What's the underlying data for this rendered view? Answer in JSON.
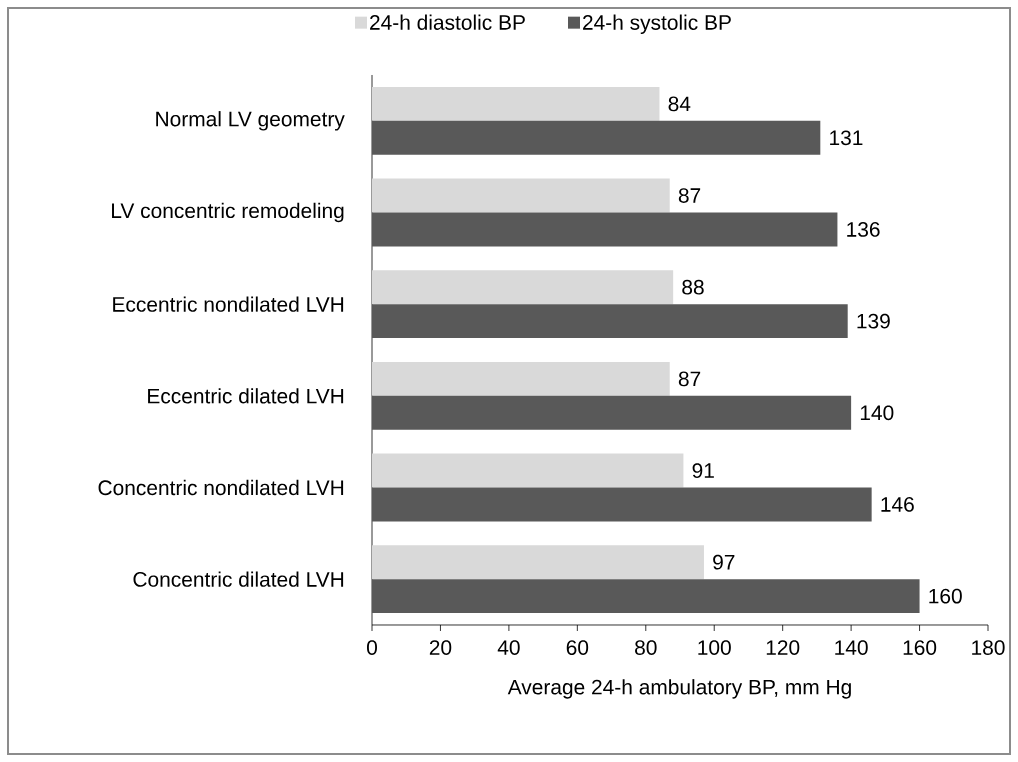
{
  "chart_data": {
    "type": "bar",
    "orientation": "horizontal",
    "categories": [
      "Normal LV geometry",
      "LV concentric remodeling",
      "Eccentric nondilated LVH",
      "Eccentric dilated LVH",
      "Concentric nondilated LVH",
      "Concentric dilated LVH"
    ],
    "series": [
      {
        "name": "24-h diastolic BP",
        "color": "#d9d9d9",
        "values": [
          84,
          87,
          88,
          87,
          91,
          97
        ]
      },
      {
        "name": "24-h systolic BP",
        "color": "#595959",
        "values": [
          131,
          136,
          139,
          140,
          146,
          160
        ]
      }
    ],
    "xlabel": "Average 24-h ambulatory BP, mm Hg",
    "xlim": [
      0,
      180
    ],
    "xticks": [
      0,
      20,
      40,
      60,
      80,
      100,
      120,
      140,
      160,
      180
    ],
    "data_labels": true,
    "legend": "top",
    "grid": false
  }
}
